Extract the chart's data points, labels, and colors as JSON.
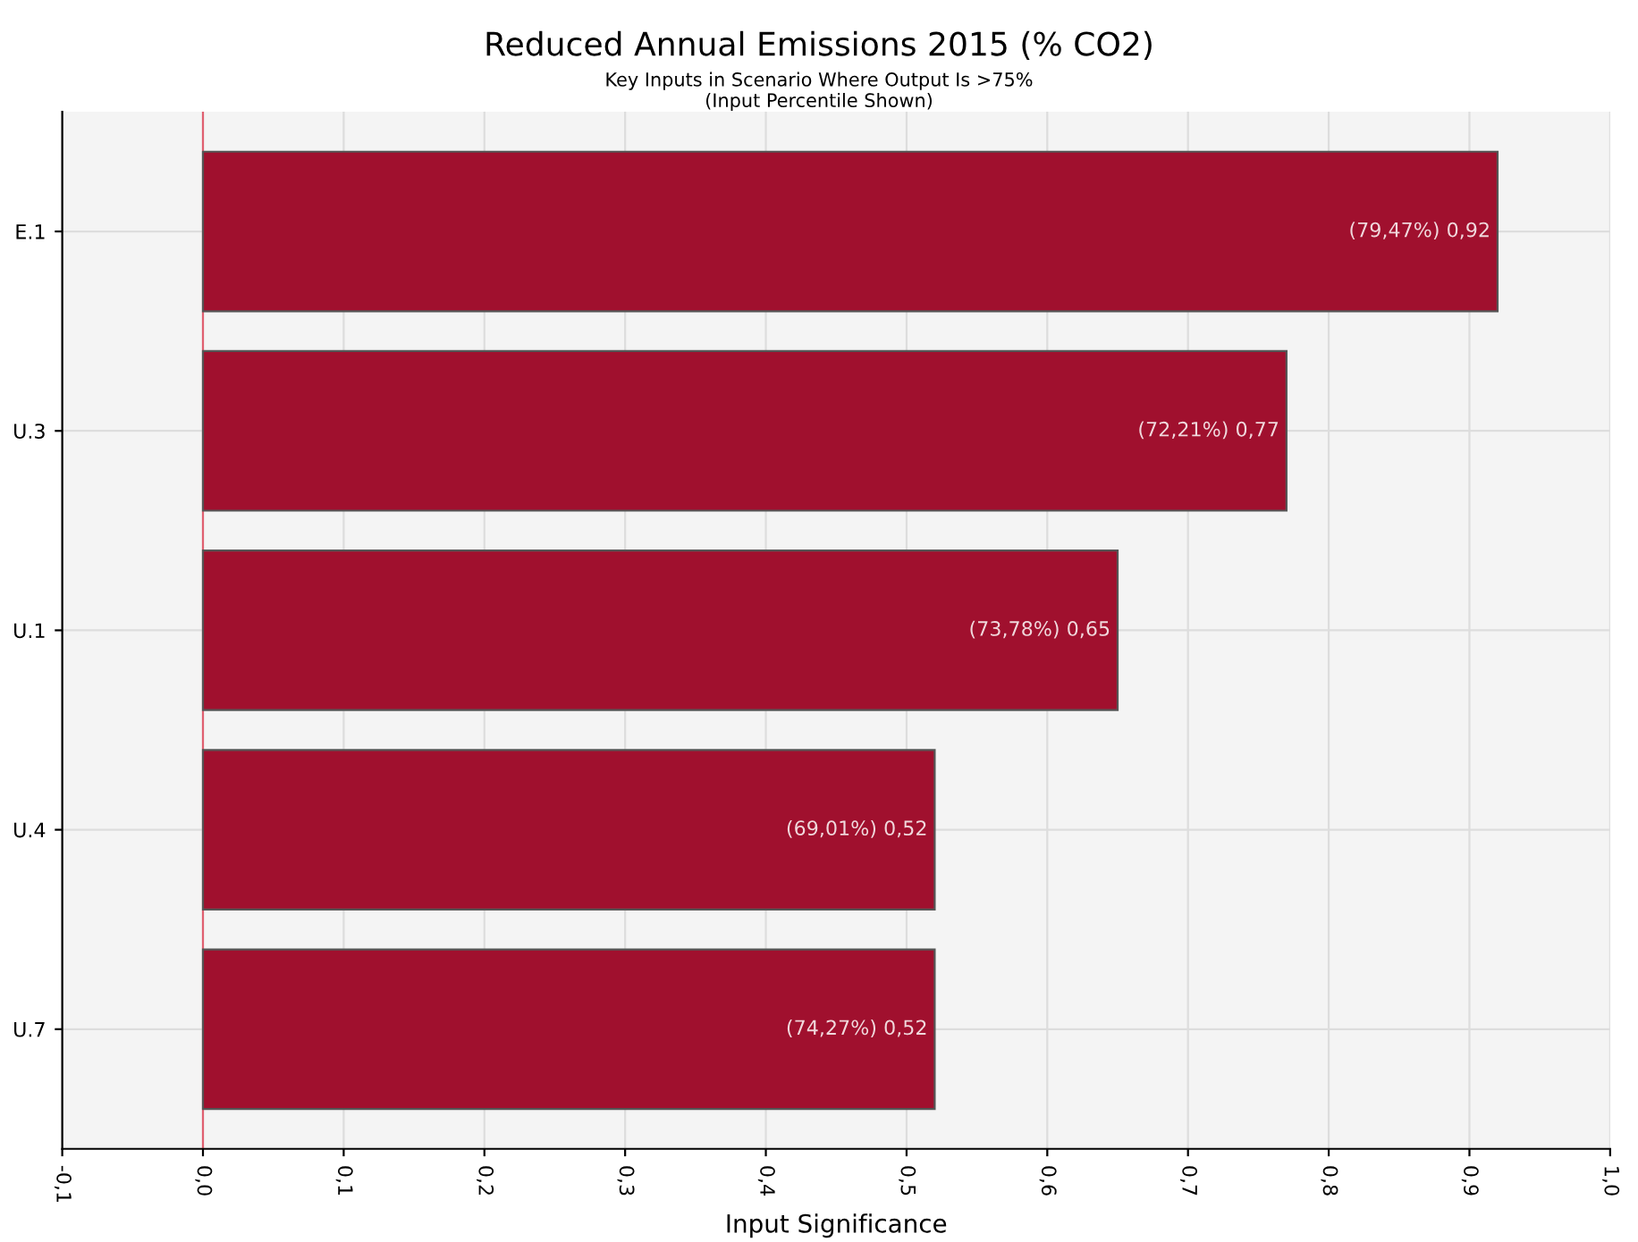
{
  "chart_data": {
    "type": "bar",
    "orientation": "horizontal",
    "title": "Reduced Annual Emissions 2015 (% CO2)",
    "subtitle": "Key Inputs in Scenario Where Output Is >75%\n(Input Percentile Shown)",
    "xlabel": "Input Significance",
    "categories": [
      "E.1",
      "U.3",
      "U.1",
      "U.4",
      "U.7"
    ],
    "values": [
      0.92,
      0.77,
      0.65,
      0.52,
      0.52
    ],
    "value_labels": [
      "(79,47%) 0,92",
      "(72,21%) 0,77",
      "(73,78%) 0,65",
      "(69,01%) 0,52",
      "(74,27%) 0,52"
    ],
    "color": "#a0102e",
    "xlim": [
      -0.1,
      1.0
    ],
    "xticks": [
      {
        "value": -0.1,
        "label": "-0,1"
      },
      {
        "value": 0.0,
        "label": "0,0"
      },
      {
        "value": 0.1,
        "label": "0,1"
      },
      {
        "value": 0.2,
        "label": "0,2"
      },
      {
        "value": 0.3,
        "label": "0,3"
      },
      {
        "value": 0.4,
        "label": "0,4"
      },
      {
        "value": 0.5,
        "label": "0,5"
      },
      {
        "value": 0.6,
        "label": "0,6"
      },
      {
        "value": 0.7,
        "label": "0,7"
      },
      {
        "value": 0.8,
        "label": "0,8"
      },
      {
        "value": 0.9,
        "label": "0,9"
      },
      {
        "value": 1.0,
        "label": "1,0"
      }
    ],
    "ref_lines": [
      {
        "axis": "x",
        "value": 0,
        "color": "#e06070"
      }
    ],
    "grid": true
  }
}
